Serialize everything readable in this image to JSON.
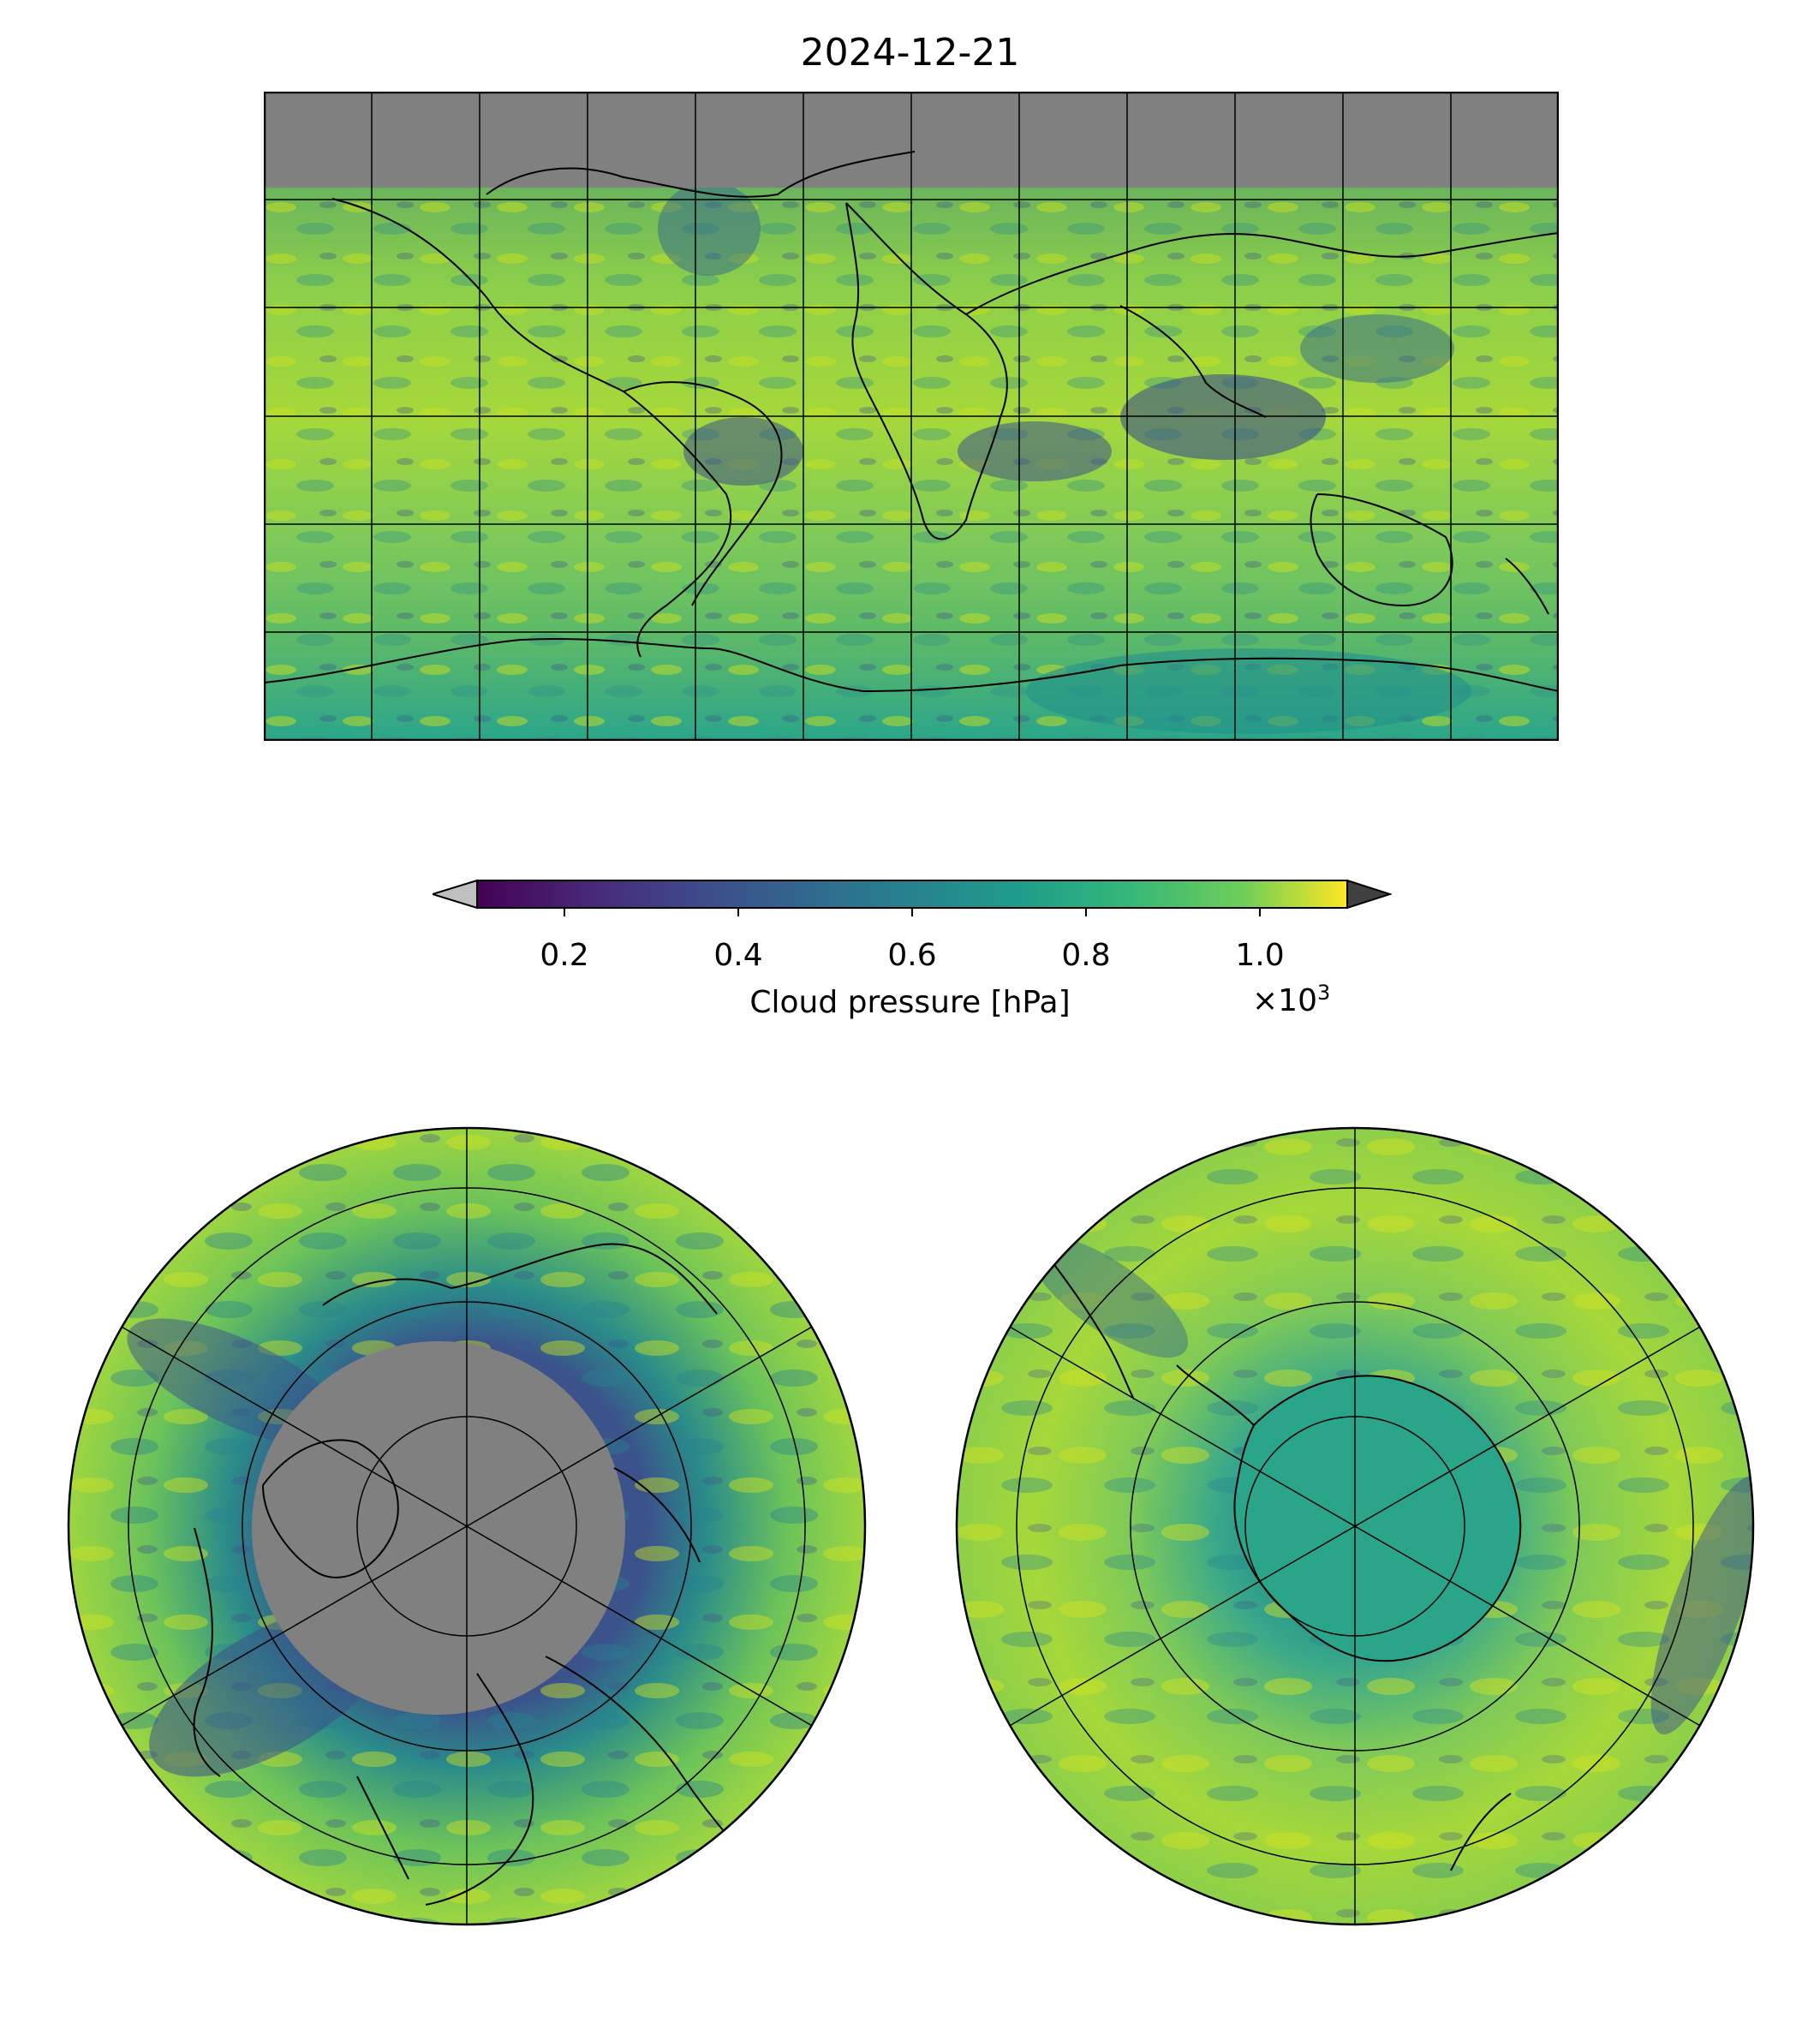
{
  "figure": {
    "title": "2024-12-21"
  },
  "colorbar": {
    "label": "Cloud pressure [hPa]",
    "multiplier_base": "×10",
    "multiplier_exp": "3",
    "ticks": [
      "0.2",
      "0.4",
      "0.6",
      "0.8",
      "1.0"
    ],
    "range": [
      0.1,
      1.1
    ],
    "under_color": "#c0c0c0",
    "over_color": "#404040",
    "colormap": "viridis"
  },
  "maps": [
    {
      "name": "global",
      "projection": "equirectangular",
      "nodata_color": "#808080"
    },
    {
      "name": "north-polar",
      "projection": "north-polar-stereographic",
      "nodata_color": "#808080"
    },
    {
      "name": "south-polar",
      "projection": "south-polar-stereographic"
    }
  ],
  "palette": {
    "viridis": [
      "#440154",
      "#3b528b",
      "#21918c",
      "#5ec962",
      "#fde725"
    ]
  }
}
